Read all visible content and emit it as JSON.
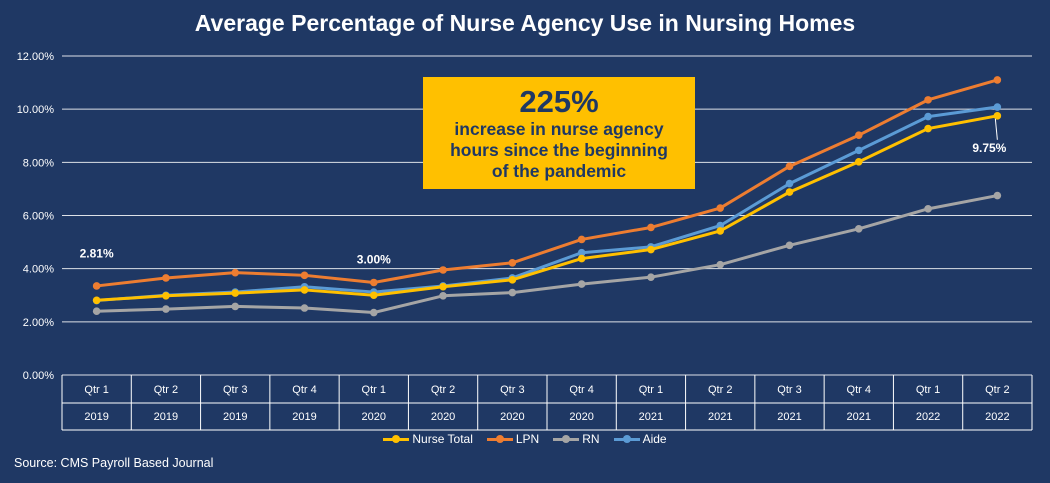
{
  "title": "Average Percentage of Nurse Agency Use in Nursing Homes",
  "source": "Source: CMS Payroll Based Journal",
  "callout": {
    "headline": "225%",
    "text": "increase in nurse agency hours since the beginning of the pandemic"
  },
  "colors": {
    "background": "#1f3864",
    "callout": "#ffc000",
    "nurse_total": "#ffc000",
    "lpn": "#ed7d31",
    "rn": "#a5a5a5",
    "aide": "#5b9bd5"
  },
  "chart_data": {
    "type": "line",
    "title": "Average Percentage of Nurse Agency Use in Nursing Homes",
    "xlabel": "",
    "ylabel": "",
    "ylim": [
      0,
      12
    ],
    "y_ticks": [
      "0.00%",
      "2.00%",
      "4.00%",
      "6.00%",
      "8.00%",
      "10.00%",
      "12.00%"
    ],
    "categories": [
      {
        "quarter": "Qtr 1",
        "year": "2019"
      },
      {
        "quarter": "Qtr 2",
        "year": "2019"
      },
      {
        "quarter": "Qtr 3",
        "year": "2019"
      },
      {
        "quarter": "Qtr 4",
        "year": "2019"
      },
      {
        "quarter": "Qtr 1",
        "year": "2020"
      },
      {
        "quarter": "Qtr 2",
        "year": "2020"
      },
      {
        "quarter": "Qtr 3",
        "year": "2020"
      },
      {
        "quarter": "Qtr 4",
        "year": "2020"
      },
      {
        "quarter": "Qtr 1",
        "year": "2021"
      },
      {
        "quarter": "Qtr 2",
        "year": "2021"
      },
      {
        "quarter": "Qtr 3",
        "year": "2021"
      },
      {
        "quarter": "Qtr 4",
        "year": "2021"
      },
      {
        "quarter": "Qtr 1",
        "year": "2022"
      },
      {
        "quarter": "Qtr 2",
        "year": "2022"
      }
    ],
    "series": [
      {
        "name": "Nurse Total",
        "color": "#ffc000",
        "values": [
          2.81,
          2.98,
          3.08,
          3.2,
          3.0,
          3.32,
          3.58,
          4.38,
          4.72,
          5.42,
          6.88,
          8.02,
          9.27,
          9.75
        ]
      },
      {
        "name": "LPN",
        "color": "#ed7d31",
        "values": [
          3.35,
          3.65,
          3.85,
          3.75,
          3.48,
          3.95,
          4.22,
          5.1,
          5.55,
          6.28,
          7.85,
          9.02,
          10.35,
          11.1
        ]
      },
      {
        "name": "RN",
        "color": "#a5a5a5",
        "values": [
          2.4,
          2.48,
          2.58,
          2.52,
          2.35,
          2.98,
          3.1,
          3.42,
          3.68,
          4.15,
          4.88,
          5.5,
          6.25,
          6.75
        ]
      },
      {
        "name": "Aide",
        "color": "#5b9bd5",
        "values": [
          2.8,
          3.0,
          3.12,
          3.32,
          3.12,
          3.35,
          3.65,
          4.6,
          4.82,
          5.62,
          7.2,
          8.45,
          9.72,
          10.08
        ]
      }
    ],
    "annotations": [
      {
        "series": "Nurse Total",
        "index": 0,
        "text": "2.81%"
      },
      {
        "series": "Nurse Total",
        "index": 4,
        "text": "3.00%"
      },
      {
        "series": "Nurse Total",
        "index": 13,
        "text": "9.75%"
      }
    ],
    "legend_position": "bottom",
    "grid": true
  }
}
